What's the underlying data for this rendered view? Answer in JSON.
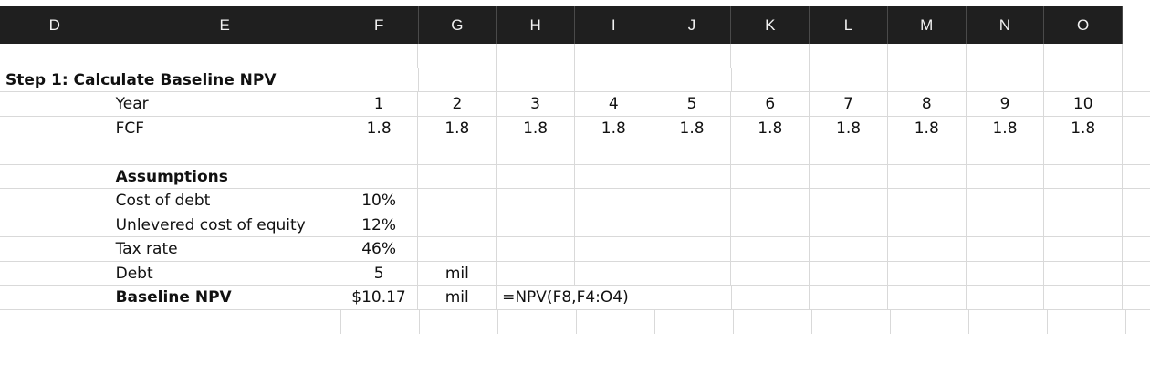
{
  "columns": [
    "D",
    "E",
    "F",
    "G",
    "H",
    "I",
    "J",
    "K",
    "L",
    "M",
    "N",
    "O"
  ],
  "step_title": "Step 1: Calculate Baseline NPV",
  "year_label": "Year",
  "years": [
    "1",
    "2",
    "3",
    "4",
    "5",
    "6",
    "7",
    "8",
    "9",
    "10"
  ],
  "fcf_label": "FCF",
  "fcf": [
    "1.8",
    "1.8",
    "1.8",
    "1.8",
    "1.8",
    "1.8",
    "1.8",
    "1.8",
    "1.8",
    "1.8"
  ],
  "assumptions_label": "Assumptions",
  "cost_of_debt": {
    "label": "Cost of debt",
    "value": "10%"
  },
  "unlevered_cost_of_equity": {
    "label": "Unlevered cost of equity",
    "value": "12%"
  },
  "tax_rate": {
    "label": "Tax rate",
    "value": "46%"
  },
  "debt": {
    "label": "Debt",
    "value": "5",
    "unit": "mil"
  },
  "baseline_npv": {
    "label": "Baseline NPV",
    "value": "$10.17",
    "unit": "mil",
    "formula": "=NPV(F8,F4:O4)"
  }
}
